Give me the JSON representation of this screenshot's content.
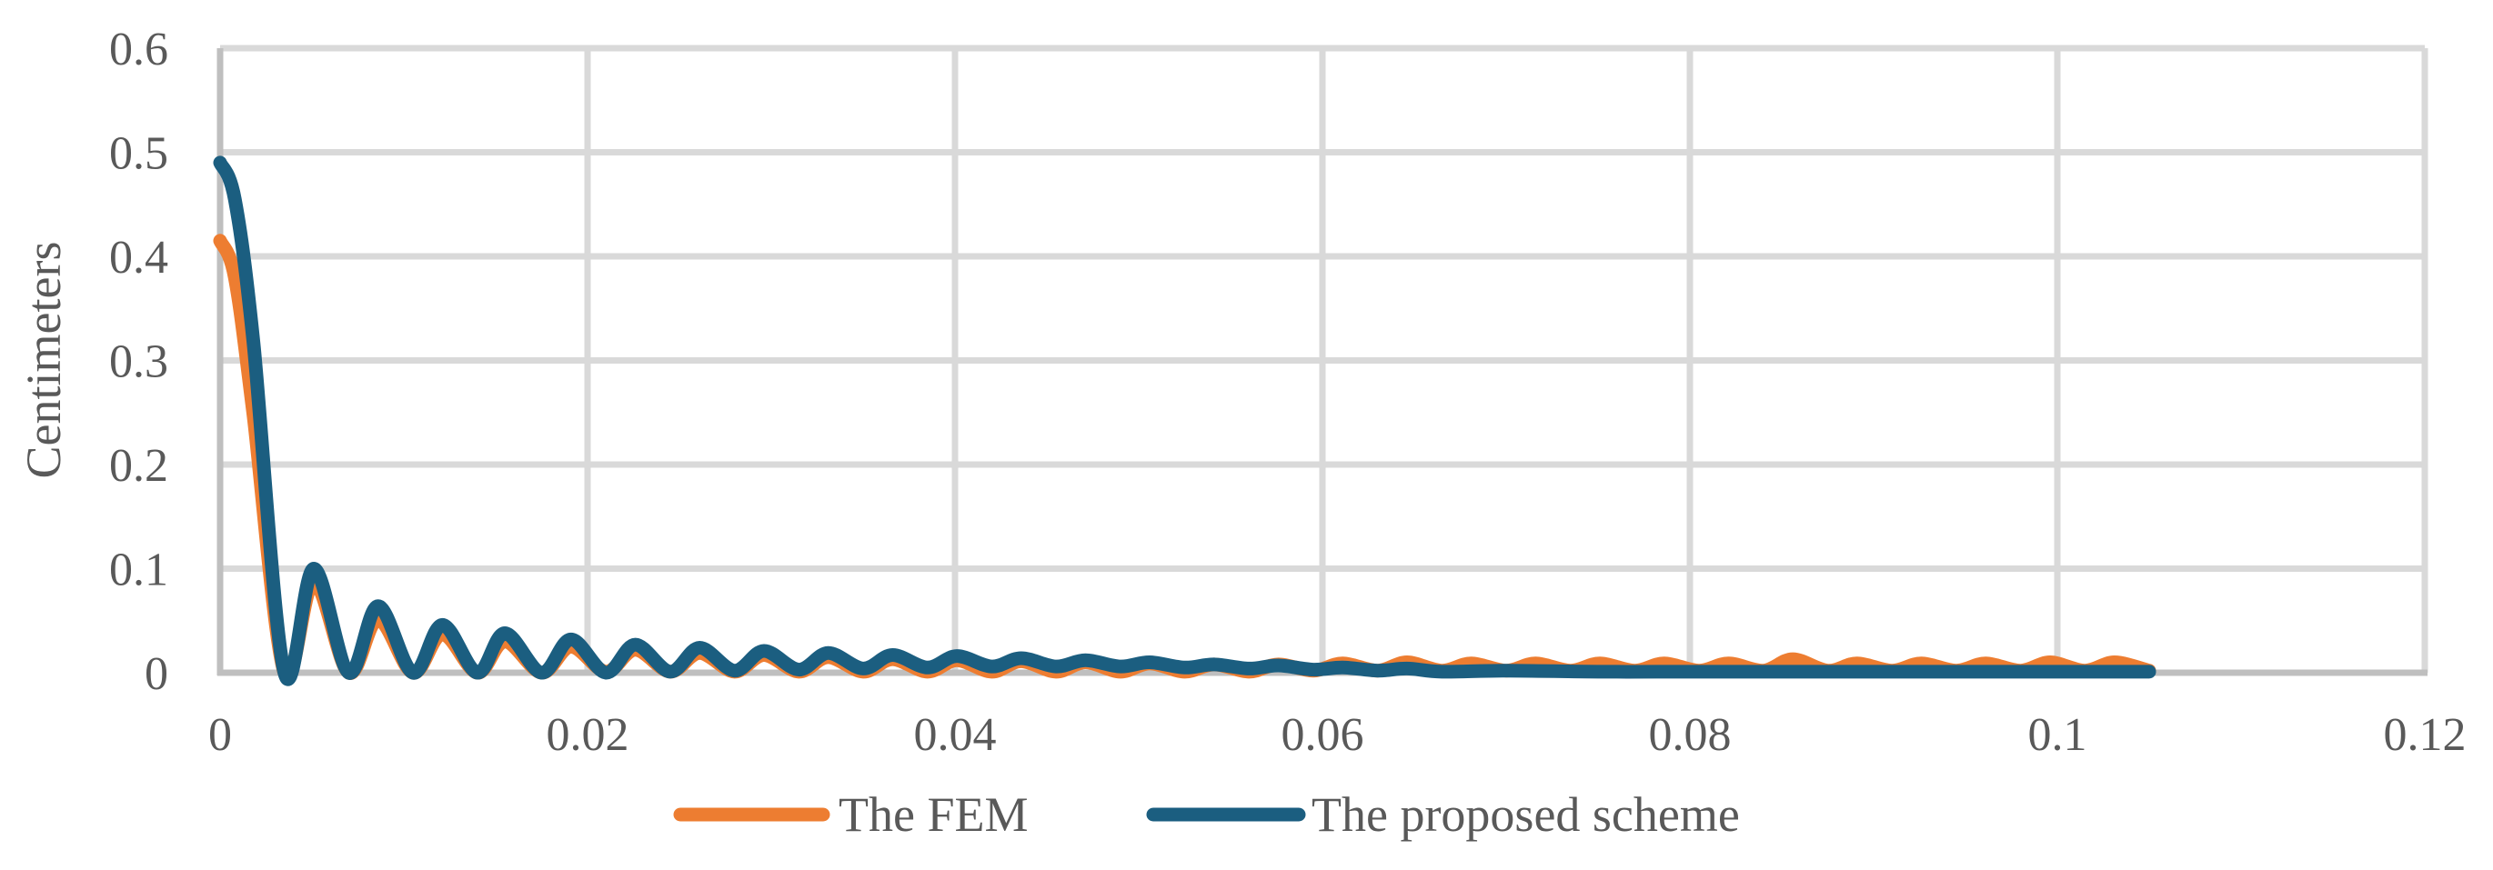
{
  "chart_data": {
    "type": "line",
    "title": "",
    "xlabel": "",
    "ylabel": "Centimeters",
    "xlim": [
      0,
      0.12
    ],
    "ylim": [
      0,
      0.6
    ],
    "x_ticks": [
      "0",
      "0.02",
      "0.04",
      "0.06",
      "0.08",
      "0.1",
      "0.12"
    ],
    "y_ticks": [
      "0",
      "0.1",
      "0.2",
      "0.3",
      "0.4",
      "0.5",
      "0.6"
    ],
    "grid": true,
    "legend_position": "bottom",
    "series": [
      {
        "name": "The FEM",
        "color": "#ED7D31",
        "x": [
          0,
          0.0008,
          0.0018,
          0.0035,
          0.0051,
          0.007,
          0.0086,
          0.0105,
          0.0121,
          0.014,
          0.0155,
          0.0175,
          0.0191,
          0.021,
          0.0226,
          0.0245,
          0.0261,
          0.028,
          0.0296,
          0.0315,
          0.0331,
          0.035,
          0.0366,
          0.0385,
          0.0401,
          0.042,
          0.0436,
          0.0455,
          0.0471,
          0.049,
          0.0506,
          0.0525,
          0.0541,
          0.056,
          0.0576,
          0.0595,
          0.0611,
          0.063,
          0.0646,
          0.0665,
          0.0681,
          0.07,
          0.0716,
          0.0735,
          0.0751,
          0.077,
          0.0786,
          0.0805,
          0.0821,
          0.084,
          0.0856,
          0.0875,
          0.0891,
          0.091,
          0.0926,
          0.0945,
          0.0961,
          0.098,
          0.0996,
          0.1015,
          0.1031,
          0.105
        ],
        "y": [
          0.415,
          0.38,
          0.25,
          0.0,
          0.087,
          0.0,
          0.051,
          0.0,
          0.037,
          0.0,
          0.03,
          0.0,
          0.025,
          0.001,
          0.022,
          0.001,
          0.019,
          0.001,
          0.017,
          0.001,
          0.015,
          0.001,
          0.013,
          0.001,
          0.012,
          0.001,
          0.011,
          0.001,
          0.01,
          0.001,
          0.009,
          0.001,
          0.008,
          0.001,
          0.008,
          0.002,
          0.009,
          0.002,
          0.01,
          0.002,
          0.009,
          0.002,
          0.009,
          0.002,
          0.009,
          0.002,
          0.009,
          0.002,
          0.009,
          0.002,
          0.013,
          0.002,
          0.009,
          0.002,
          0.009,
          0.002,
          0.009,
          0.002,
          0.01,
          0.002,
          0.01,
          0.002
        ]
      },
      {
        "name": "The proposed scheme",
        "color": "#1B5E80",
        "x": [
          0,
          0.0008,
          0.0018,
          0.0035,
          0.0051,
          0.007,
          0.0086,
          0.0105,
          0.0121,
          0.014,
          0.0155,
          0.0175,
          0.0191,
          0.021,
          0.0226,
          0.0245,
          0.0261,
          0.028,
          0.0296,
          0.0315,
          0.0331,
          0.035,
          0.0366,
          0.0385,
          0.0401,
          0.042,
          0.0436,
          0.0455,
          0.0471,
          0.049,
          0.0506,
          0.0525,
          0.0541,
          0.056,
          0.0576,
          0.0595,
          0.0611,
          0.063,
          0.0646,
          0.0665,
          0.07,
          0.075,
          0.08,
          0.085,
          0.09,
          0.095,
          0.1,
          0.105
        ],
        "y": [
          0.49,
          0.455,
          0.32,
          0.0,
          0.1,
          0.0,
          0.064,
          0.0,
          0.046,
          0.0,
          0.038,
          0.0,
          0.032,
          0.0,
          0.027,
          0.001,
          0.024,
          0.002,
          0.021,
          0.003,
          0.019,
          0.004,
          0.017,
          0.005,
          0.016,
          0.006,
          0.014,
          0.006,
          0.012,
          0.006,
          0.01,
          0.005,
          0.008,
          0.004,
          0.007,
          0.003,
          0.005,
          0.002,
          0.004,
          0.001,
          0.002,
          0.001,
          0.001,
          0.001,
          0.001,
          0.001,
          0.001,
          0.001
        ]
      }
    ]
  },
  "legend": {
    "items": [
      {
        "label": "The FEM",
        "color": "#ED7D31"
      },
      {
        "label": "The proposed scheme",
        "color": "#1B5E80"
      }
    ]
  },
  "colors": {
    "grid": "#D9D9D9",
    "axis": "#BFBFBF",
    "text": "#595959"
  }
}
